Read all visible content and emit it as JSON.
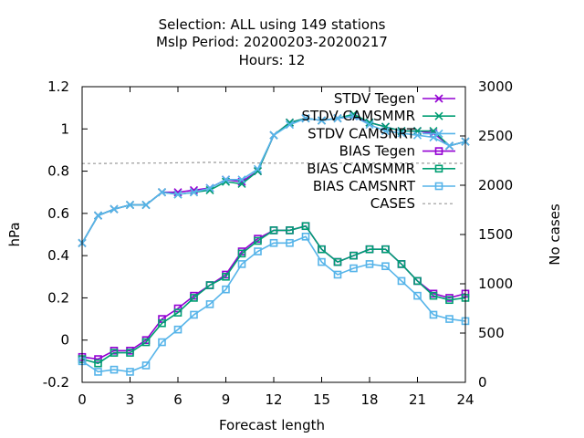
{
  "chart_data": {
    "type": "line",
    "title_lines": [
      "Selection: ALL using   149 stations",
      "Mslp   Period: 20200203-20200217",
      "Hours:  12"
    ],
    "xlabel": "Forecast length",
    "ylabel": "hPa",
    "y2label": "No cases",
    "xlim": [
      0,
      24
    ],
    "ylim": [
      -0.2,
      1.2
    ],
    "y2lim": [
      0,
      3000
    ],
    "x_ticks": [
      0,
      3,
      6,
      9,
      12,
      15,
      18,
      21,
      24
    ],
    "y_ticks": [
      -0.2,
      0,
      0.2,
      0.4,
      0.6,
      0.8,
      1,
      1.2
    ],
    "y_tick_labels": [
      "-0.2",
      "0",
      "0.2",
      "0.4",
      "0.6",
      "0.8",
      "1",
      "1.2"
    ],
    "y2_ticks": [
      0,
      500,
      1000,
      1500,
      2000,
      2500,
      3000
    ],
    "legend_position": "top-right",
    "x": [
      0,
      1,
      2,
      3,
      4,
      5,
      6,
      7,
      8,
      9,
      10,
      11,
      12,
      13,
      14,
      15,
      16,
      17,
      18,
      19,
      20,
      21,
      22,
      23,
      24
    ],
    "series": [
      {
        "name": "STDV Tegen",
        "color": "#9400d3",
        "marker": "x",
        "axis": "y1",
        "values": [
          0.46,
          0.59,
          0.62,
          0.64,
          0.64,
          0.7,
          0.7,
          0.71,
          0.72,
          0.76,
          0.75,
          0.8,
          0.97,
          1.03,
          1.05,
          1.04,
          1.05,
          1.06,
          1.03,
          1.01,
          0.99,
          0.99,
          0.98,
          0.92,
          0.94
        ]
      },
      {
        "name": "STDV CAMSMMR",
        "color": "#009e73",
        "marker": "x",
        "axis": "y1",
        "values": [
          0.46,
          0.59,
          0.62,
          0.64,
          0.64,
          0.7,
          0.69,
          0.7,
          0.71,
          0.75,
          0.74,
          0.8,
          0.97,
          1.03,
          1.05,
          1.04,
          1.05,
          1.07,
          1.03,
          1.01,
          0.99,
          0.99,
          0.99,
          0.92,
          0.94
        ]
      },
      {
        "name": "STDV CAMSNRT",
        "color": "#56b4e9",
        "marker": "x",
        "axis": "y1",
        "values": [
          0.46,
          0.59,
          0.62,
          0.64,
          0.64,
          0.7,
          0.69,
          0.7,
          0.72,
          0.76,
          0.76,
          0.81,
          0.97,
          1.02,
          1.05,
          1.04,
          1.05,
          1.06,
          1.02,
          0.99,
          0.98,
          0.97,
          0.96,
          0.92,
          0.94
        ]
      },
      {
        "name": "BIAS Tegen",
        "color": "#9400d3",
        "marker": "square",
        "axis": "y1",
        "values": [
          -0.08,
          -0.09,
          -0.05,
          -0.05,
          0.0,
          0.1,
          0.15,
          0.21,
          0.26,
          0.31,
          0.42,
          0.48,
          0.52,
          0.52,
          0.54,
          0.43,
          0.37,
          0.4,
          0.43,
          0.43,
          0.36,
          0.28,
          0.22,
          0.2,
          0.22
        ]
      },
      {
        "name": "BIAS CAMSMMR",
        "color": "#009e73",
        "marker": "square",
        "axis": "y1",
        "values": [
          -0.09,
          -0.11,
          -0.06,
          -0.06,
          -0.01,
          0.08,
          0.13,
          0.2,
          0.26,
          0.3,
          0.41,
          0.47,
          0.52,
          0.52,
          0.54,
          0.43,
          0.37,
          0.4,
          0.43,
          0.43,
          0.36,
          0.28,
          0.21,
          0.19,
          0.2
        ]
      },
      {
        "name": "BIAS CAMSNRT",
        "color": "#56b4e9",
        "marker": "square",
        "axis": "y1",
        "values": [
          -0.1,
          -0.15,
          -0.14,
          -0.15,
          -0.12,
          -0.01,
          0.05,
          0.12,
          0.17,
          0.24,
          0.36,
          0.42,
          0.46,
          0.46,
          0.49,
          0.37,
          0.31,
          0.34,
          0.36,
          0.35,
          0.28,
          0.21,
          0.12,
          0.1,
          0.09
        ]
      },
      {
        "name": "CASES",
        "color": "#999999",
        "marker": "none",
        "dashed": true,
        "axis": "y2",
        "values": [
          2220,
          2220,
          2222,
          2224,
          2225,
          2225,
          2228,
          2230,
          2232,
          2230,
          2228,
          2226,
          2224,
          2224,
          2225,
          2226,
          2225,
          2225,
          2225,
          2225,
          2225,
          2224,
          2222,
          2222,
          2222
        ]
      }
    ]
  }
}
